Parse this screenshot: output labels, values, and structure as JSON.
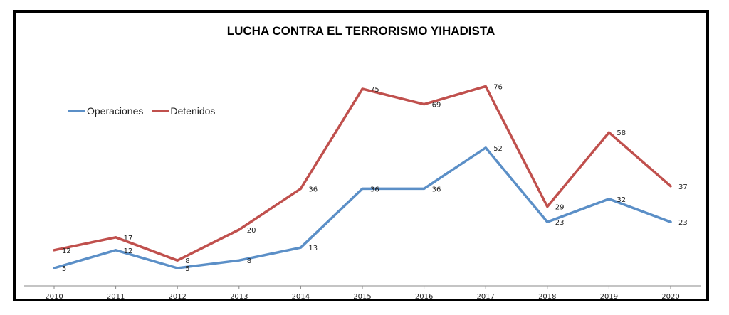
{
  "chart_data": {
    "type": "line",
    "title": "LUCHA CONTRA EL TERRORISMO YIHADISTA",
    "categories": [
      "2010",
      "2011",
      "2012",
      "2013",
      "2014",
      "2015",
      "2016",
      "2017",
      "2018",
      "2019",
      "2020"
    ],
    "series": [
      {
        "name": "Operaciones",
        "color": "#5b8fc7",
        "values": [
          5,
          12,
          5,
          8,
          13,
          36,
          36,
          52,
          23,
          32,
          23
        ]
      },
      {
        "name": "Detenidos",
        "color": "#c0504d",
        "values": [
          12,
          17,
          8,
          20,
          36,
          75,
          69,
          76,
          29,
          58,
          37
        ]
      }
    ],
    "ylim": [
      0,
      80
    ],
    "grid": false,
    "legend": "top-left"
  }
}
